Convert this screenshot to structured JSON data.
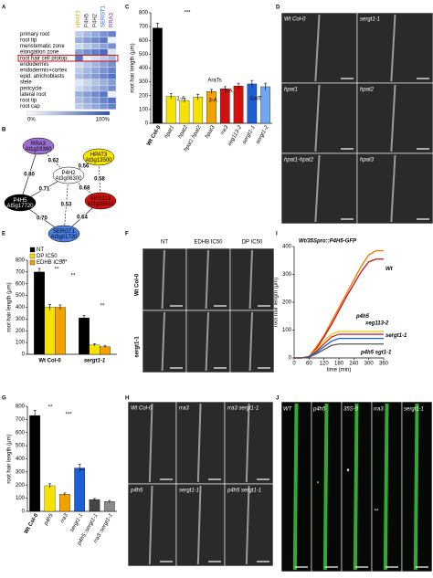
{
  "figure": {
    "panel_letters": [
      "A",
      "B",
      "C",
      "D",
      "E",
      "F",
      "G",
      "H",
      "I",
      "J"
    ],
    "A": {
      "genes": [
        "HPAT3",
        "P4H5",
        "P4H2",
        "SERGT1",
        "RRA3"
      ],
      "tissues": [
        "primary root",
        "root tip",
        "meristematic zone",
        "elongation zone",
        "root hair cell protop.",
        "endodermis",
        "endodermis+cortex",
        "epid. atrichoblasts",
        "stele",
        "pericycle",
        "lateral root",
        "root tip",
        "root cap"
      ],
      "scale": [
        "0%",
        "100%"
      ]
    },
    "B": {
      "nodes": [
        {
          "name": "RRA3",
          "id": "At1g19360"
        },
        {
          "name": "HPAT3",
          "id": "At3g13500"
        },
        {
          "name": "P4H2",
          "id": "At3g06300"
        },
        {
          "name": "P4H5",
          "id": "At5g17720"
        },
        {
          "name": "XEG113",
          "id": "At2g35610"
        },
        {
          "name": "SERGT1",
          "id": "At3g01720"
        }
      ],
      "edges": [
        "0.80",
        "0.62",
        "0.56",
        "0.58",
        "0.71",
        "0.68",
        "0.70",
        "0.53",
        "0.64"
      ]
    },
    "D": {
      "labels": [
        "Wt Col-0",
        "sergt1-1",
        "hpat1",
        "hpat2",
        "hpat1-hpat2",
        "hpat3"
      ]
    },
    "F": {
      "columns": [
        "NT",
        "EDHB IC50",
        "DP IC50"
      ],
      "rows": [
        "Wt Col-0",
        "sergt1-1"
      ]
    },
    "H": {
      "labels": [
        "Wt Col-0",
        "rra3",
        "rra3 sergt1-1",
        "p4h5",
        "sergt1-1",
        "p4h5 sergt1-1"
      ]
    },
    "J": {
      "labels": [
        "WT",
        "p4h5",
        "35S-5",
        "rra3",
        "sergt1-1"
      ],
      "marks": [
        "*",
        "♦",
        "**"
      ]
    }
  },
  "chart_data": [
    {
      "type": "bar",
      "y_label": "root hair length (μm)",
      "categories": [
        "Wt Col-0",
        "hpat1",
        "hpat2",
        "hpat1 hpat2",
        "hpat3",
        "rra3",
        "xeg113-2",
        "sergt1-1",
        "sergt1-2"
      ],
      "values": [
        690,
        195,
        165,
        190,
        230,
        250,
        270,
        285,
        265
      ],
      "errors": [
        35,
        20,
        15,
        20,
        15,
        15,
        20,
        25,
        25
      ],
      "colors": [
        "#000000",
        "#f5e200",
        "#f5e200",
        "#f5e200",
        "#f2a200",
        "#d11010",
        "#d11010",
        "#1f5fd6",
        "#6fa8f0"
      ],
      "ylim": [
        0,
        800
      ],
      "yticks": [
        0,
        100,
        200,
        300,
        400,
        500,
        600,
        700,
        800
      ],
      "annotations": [
        "***",
        "AraTs",
        "1-A",
        "2-A",
        "3-A",
        "GalT"
      ]
    },
    {
      "type": "grouped_bar",
      "y_label": "root hair length (μm)",
      "categories": [
        "Wt Col-0",
        "sergt1-1"
      ],
      "series": [
        {
          "name": "NT",
          "color": "#000000",
          "values": [
            700,
            310
          ]
        },
        {
          "name": "DP IC50",
          "color": "#f5e200",
          "values": [
            400,
            80
          ]
        },
        {
          "name": "EDHB IC50",
          "color": "#f2a200",
          "values": [
            400,
            65
          ]
        }
      ],
      "errors": [
        [
          30,
          20
        ],
        [
          25,
          10
        ],
        [
          20,
          8
        ]
      ],
      "ylim": [
        0,
        800
      ],
      "yticks": [
        0,
        100,
        200,
        300,
        400,
        500,
        600,
        700,
        800
      ],
      "legend": "top-left",
      "annotations": [
        "***",
        "**",
        "**",
        "**"
      ]
    },
    {
      "type": "line",
      "x_label": "time (min)",
      "y_label": "root hair length (μm)",
      "x": [
        0,
        30,
        60,
        90,
        120,
        150,
        180,
        210,
        240,
        270,
        300,
        330,
        360
      ],
      "series": [
        {
          "name": "Wt/35Spro::P4H5-GFP",
          "color": "#f07800",
          "values": [
            0,
            0,
            5,
            40,
            80,
            130,
            180,
            230,
            280,
            330,
            370,
            385,
            385
          ]
        },
        {
          "name": "Wt",
          "color": "#d11010",
          "values": [
            0,
            0,
            5,
            35,
            75,
            120,
            170,
            220,
            265,
            310,
            345,
            355,
            355
          ]
        },
        {
          "name": "p4h5",
          "color": "#f5c200",
          "values": [
            0,
            0,
            5,
            30,
            60,
            85,
            95,
            95,
            95,
            95,
            95,
            95,
            95
          ]
        },
        {
          "name": "xeg113-2",
          "color": "#c03030",
          "values": [
            0,
            0,
            5,
            25,
            50,
            75,
            85,
            85,
            85,
            85,
            85,
            85,
            85
          ]
        },
        {
          "name": "sergt1-1",
          "color": "#1f5fd6",
          "values": [
            0,
            0,
            5,
            20,
            40,
            60,
            70,
            70,
            70,
            70,
            70,
            70,
            70
          ]
        },
        {
          "name": "p4h5 sgt1-1",
          "color": "#555555",
          "values": [
            0,
            0,
            3,
            15,
            30,
            45,
            50,
            50,
            50,
            50,
            50,
            50,
            50
          ]
        }
      ],
      "xlim": [
        0,
        360
      ],
      "xticks": [
        0,
        60,
        120,
        180,
        240,
        300,
        360
      ],
      "ylim": [
        0,
        400
      ],
      "yticks": [
        0,
        100,
        200,
        300,
        400
      ]
    },
    {
      "type": "bar",
      "y_label": "root hair length (μm)",
      "categories": [
        "Wt Col-0",
        "p4h5",
        "rra3",
        "sergt1-1",
        "p4h5::sergt1-1",
        "rra3::sergt1-1"
      ],
      "values": [
        730,
        195,
        130,
        330,
        90,
        75
      ],
      "errors": [
        40,
        15,
        10,
        30,
        8,
        8
      ],
      "colors": [
        "#000000",
        "#f5e200",
        "#f2a200",
        "#1f5fd6",
        "#444444",
        "#888888"
      ],
      "ylim": [
        0,
        800
      ],
      "yticks": [
        0,
        100,
        200,
        300,
        400,
        500,
        600,
        700,
        800
      ],
      "annotations": [
        "**",
        "***",
        "**"
      ]
    }
  ]
}
